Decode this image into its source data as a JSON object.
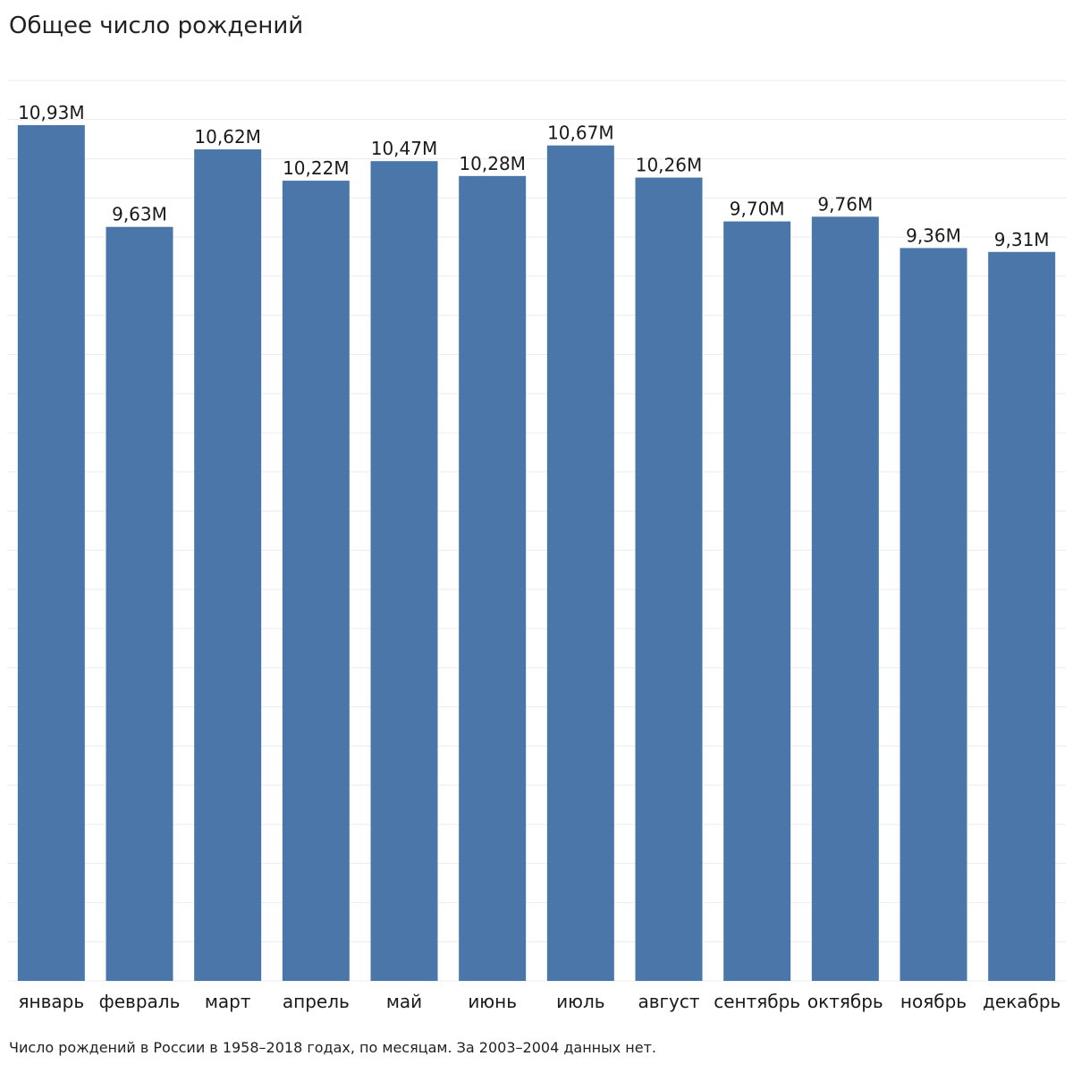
{
  "title": "Общее число рождений",
  "caption": "Число рождений в России в 1958–2018 годах, по месяцам. За 2003–2004 данных нет.",
  "colors": {
    "bar": "#4a76aa",
    "grid": "#ececec",
    "text": "#1a1a1a"
  },
  "chart_data": {
    "type": "bar",
    "categories": [
      "январь",
      "февраль",
      "март",
      "апрель",
      "май",
      "июнь",
      "июль",
      "август",
      "сентябрь",
      "октябрь",
      "ноябрь",
      "декабрь"
    ],
    "values": [
      10.93,
      9.63,
      10.62,
      10.22,
      10.47,
      10.28,
      10.67,
      10.26,
      9.7,
      9.76,
      9.36,
      9.31
    ],
    "value_unit": "M",
    "data_labels": [
      "10,93M",
      "9,63M",
      "10,62M",
      "10,22M",
      "10,47M",
      "10,28M",
      "10,67M",
      "10,26M",
      "9,70M",
      "9,76M",
      "9,36M",
      "9,31M"
    ],
    "ylim": [
      0,
      11.5
    ],
    "grid": true,
    "grid_step": 0.5,
    "legend": "none"
  }
}
